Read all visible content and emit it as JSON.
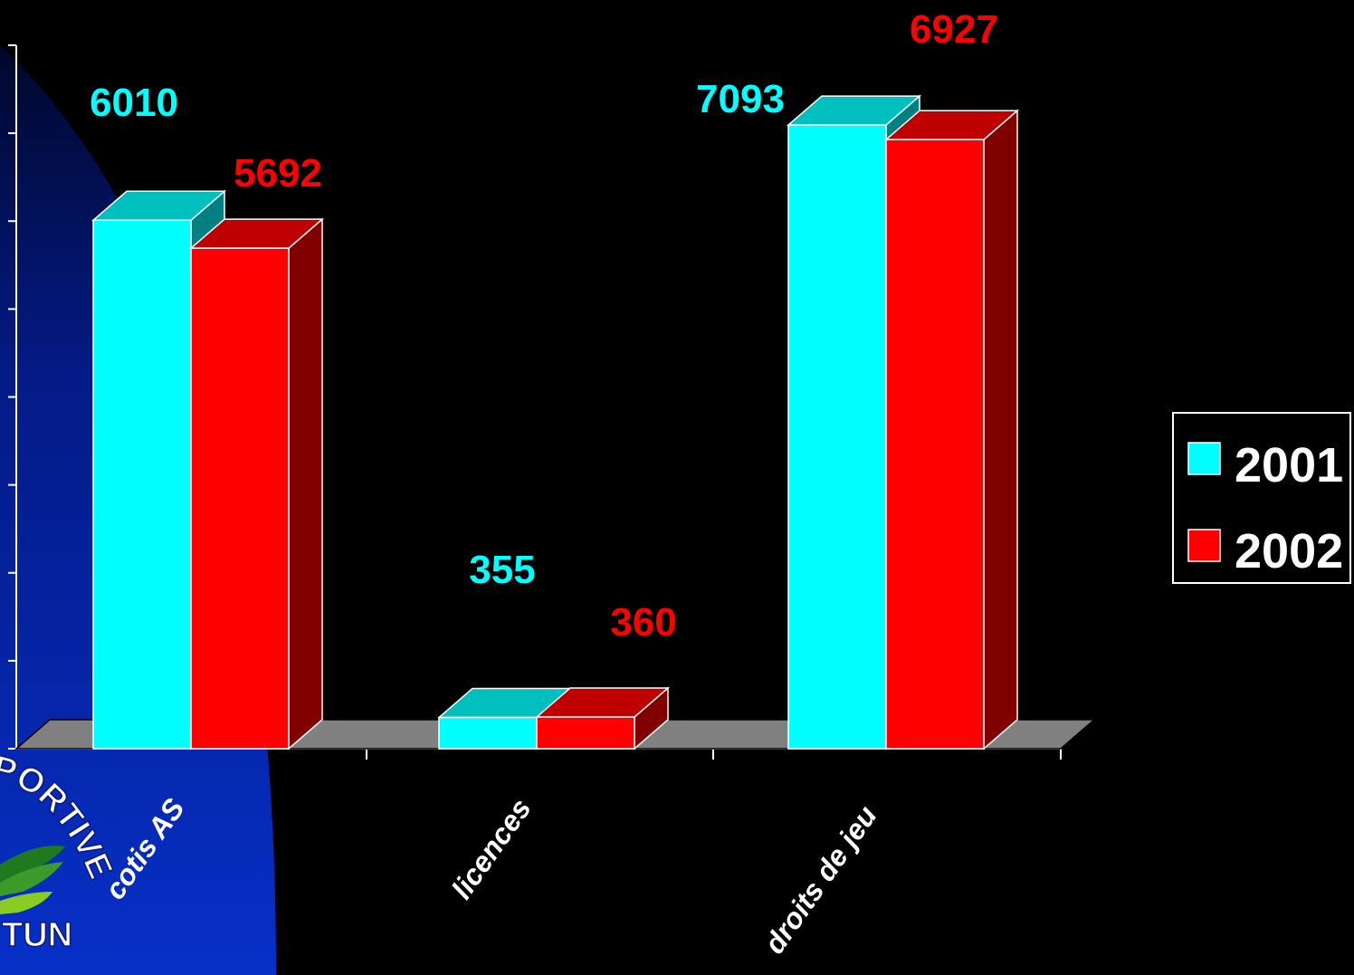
{
  "chart_data": {
    "type": "bar",
    "style": "3d-clustered",
    "categories": [
      "cotis AS",
      "licences",
      "droits de jeu"
    ],
    "series": [
      {
        "name": "2001",
        "values": [
          6010,
          355,
          7093
        ],
        "color": "#00ffff",
        "side_color": "#008080",
        "top_color": "#00bfbf",
        "label_color": "#00ffff"
      },
      {
        "name": "2002",
        "values": [
          5692,
          360,
          6927
        ],
        "color": "#ff0000",
        "side_color": "#800000",
        "top_color": "#bf0000",
        "label_color": "#ff0000"
      }
    ],
    "ylim": [
      0,
      8000
    ],
    "y_tick_count": 8,
    "y_tick_labels_shown": false,
    "grid": false,
    "legend": {
      "position": "right",
      "entries": [
        "2001",
        "2002"
      ]
    },
    "floor_color": "#808080"
  },
  "background": {
    "color": "#000000",
    "logo_colors": [
      "#0a35c8",
      "#2a8a2a",
      "#8acc22"
    ],
    "logo_text_fragments": [
      "PORTIVE",
      "TUN"
    ]
  }
}
